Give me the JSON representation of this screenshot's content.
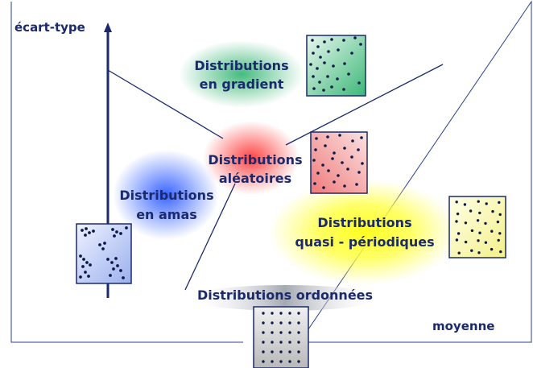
{
  "axes": {
    "y_label": "écart-type",
    "x_label": "moyenne"
  },
  "regions": {
    "gradient": {
      "line1": "Distributions",
      "line2": "en gradient"
    },
    "random": {
      "line1": "Distributions",
      "line2": "aléatoires"
    },
    "clusters": {
      "line1": "Distributions",
      "line2": "en amas"
    },
    "quasi": {
      "line1": "Distributions",
      "line2": "quasi - périodiques"
    },
    "ordered": {
      "line1": "Distributions ordonnées"
    }
  },
  "colors": {
    "text": "#1a2a6c",
    "axis": "#1a2a6c",
    "frame": "#2a3f8c",
    "dot": "#0d1a4a",
    "glow_green": "#3cb878",
    "glow_red": "#ff3b3b",
    "glow_blue": "#2e5cff",
    "glow_yellow": "#ffff30"
  }
}
